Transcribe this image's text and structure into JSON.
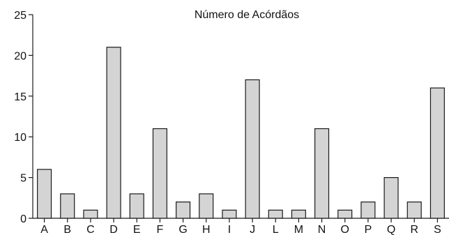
{
  "chart_data": {
    "type": "bar",
    "title": "Número de Acórdãos",
    "xlabel": "",
    "ylabel": "",
    "categories": [
      "A",
      "B",
      "C",
      "D",
      "E",
      "F",
      "G",
      "H",
      "I",
      "J",
      "L",
      "M",
      "N",
      "O",
      "P",
      "Q",
      "R",
      "S"
    ],
    "values": [
      6,
      3,
      1,
      21,
      3,
      11,
      2,
      3,
      1,
      17,
      1,
      1,
      11,
      1,
      2,
      5,
      2,
      16
    ],
    "ylim": [
      0,
      25
    ],
    "yticks": [
      0,
      5,
      10,
      15,
      20,
      25
    ],
    "grid": false,
    "legend": "none",
    "colors": {
      "bar_fill": "#d4d4d4",
      "bar_stroke": "#1a1a1a",
      "axis": "#1a1a1a",
      "text": "#111111"
    }
  }
}
